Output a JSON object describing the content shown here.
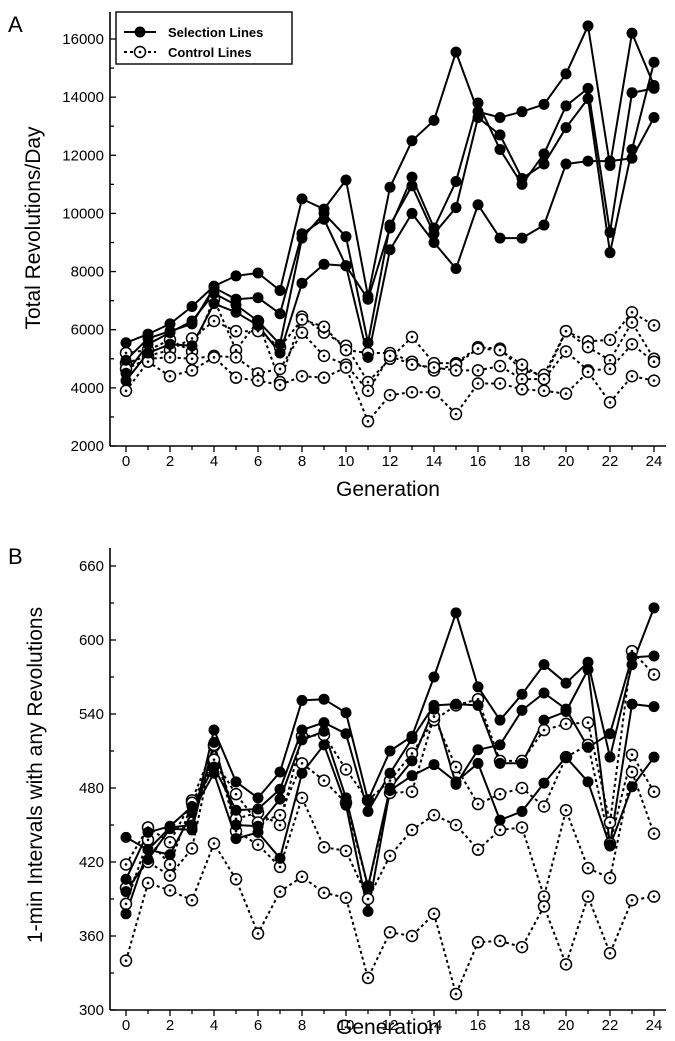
{
  "chart_data": [
    {
      "panel": "A",
      "type": "line",
      "ylabel": "Total Revolutions/Day",
      "xlabel": "Generation",
      "xlim": [
        0,
        24
      ],
      "ylim": [
        2000,
        17000
      ],
      "xticks": [
        "0",
        "2",
        "4",
        "6",
        "8",
        "10",
        "12",
        "14",
        "16",
        "18",
        "20",
        "22",
        "24"
      ],
      "yticks": [
        "2000",
        "4000",
        "6000",
        "8000",
        "10000",
        "12000",
        "14000",
        "16000"
      ],
      "legend": {
        "position": "top-left",
        "entries": [
          {
            "label": "Selection Lines",
            "marker": "filled-circle",
            "line": "solid"
          },
          {
            "label": "Control Lines",
            "marker": "open-circle",
            "line": "dotted"
          }
        ]
      },
      "x": [
        0,
        1,
        2,
        3,
        4,
        5,
        6,
        7,
        8,
        9,
        10,
        11,
        12,
        13,
        14,
        15,
        16,
        17,
        18,
        19,
        20,
        21,
        22,
        23,
        24
      ],
      "series": [
        {
          "group": "selection",
          "values": [
            5550,
            5850,
            6200,
            6800,
            7500,
            7850,
            7950,
            7350,
            10500,
            10150,
            11150,
            7150,
            10900,
            12500,
            13200,
            15550,
            13500,
            13300,
            13500,
            13750,
            14800,
            16450,
            11650,
            16200,
            14400
          ]
        },
        {
          "group": "selection",
          "values": [
            4950,
            5700,
            5950,
            6200,
            7450,
            7050,
            7100,
            6550,
            9300,
            9800,
            8200,
            7050,
            9500,
            11250,
            9500,
            11100,
            13800,
            12200,
            11000,
            12050,
            13700,
            14300,
            9350,
            14150,
            14300
          ]
        },
        {
          "group": "selection",
          "values": [
            4500,
            5500,
            5900,
            6300,
            7250,
            6850,
            6300,
            5500,
            9150,
            10000,
            9200,
            5550,
            9600,
            10950,
            9300,
            10200,
            13300,
            12700,
            11200,
            11700,
            12950,
            13950,
            8650,
            12200,
            15200
          ]
        },
        {
          "group": "selection",
          "values": [
            4250,
            5200,
            5500,
            5450,
            6900,
            6600,
            6150,
            5200,
            7600,
            8250,
            8200,
            5050,
            8750,
            10000,
            9000,
            8100,
            10300,
            9150,
            9150,
            9600,
            11700,
            11800,
            11800,
            11900,
            13300
          ]
        },
        {
          "group": "control",
          "values": [
            5200,
            5300,
            5650,
            5250,
            7050,
            5300,
            6300,
            4200,
            6450,
            5900,
            5450,
            4200,
            5000,
            5750,
            4850,
            4850,
            5400,
            5350,
            4600,
            4450,
            5950,
            5600,
            5650,
            6600,
            6150
          ]
        },
        {
          "group": "control",
          "values": [
            4850,
            5100,
            5300,
            5700,
            6300,
            5950,
            5950,
            5400,
            6350,
            6100,
            5300,
            5200,
            5200,
            4900,
            4600,
            4800,
            5350,
            5300,
            4800,
            4300,
            5950,
            5400,
            4950,
            6250,
            5000
          ]
        },
        {
          "group": "control",
          "values": [
            4650,
            5000,
            5050,
            5000,
            5100,
            5050,
            4500,
            4650,
            5900,
            5100,
            4800,
            3900,
            5100,
            4800,
            4700,
            4600,
            4600,
            4750,
            4300,
            4300,
            5250,
            4600,
            4650,
            5500,
            4900
          ]
        },
        {
          "group": "control",
          "values": [
            3900,
            4900,
            4400,
            4600,
            5050,
            4350,
            4250,
            4100,
            4400,
            4350,
            4700,
            2850,
            3750,
            3850,
            3850,
            3100,
            4150,
            4150,
            3950,
            3900,
            3800,
            4550,
            3500,
            4400,
            4250
          ]
        }
      ]
    },
    {
      "panel": "B",
      "type": "line",
      "ylabel": "1-min Intervals with any Revolutions",
      "xlabel": "Generation",
      "xlim": [
        0,
        24
      ],
      "ylim": [
        300,
        660
      ],
      "xticks": [
        "0",
        "2",
        "4",
        "6",
        "8",
        "10",
        "12",
        "14",
        "16",
        "18",
        "20",
        "22",
        "24"
      ],
      "yticks": [
        "300",
        "360",
        "420",
        "480",
        "540",
        "600",
        "660"
      ],
      "x": [
        0,
        1,
        2,
        3,
        4,
        5,
        6,
        7,
        8,
        9,
        10,
        11,
        12,
        13,
        14,
        15,
        16,
        17,
        18,
        19,
        20,
        21,
        22,
        23,
        24
      ],
      "series": [
        {
          "group": "selection",
          "values": [
            440,
            430,
            448,
            450,
            527,
            485,
            472,
            493,
            551,
            552,
            541,
            470,
            510,
            522,
            570,
            622,
            562,
            535,
            556,
            580,
            565,
            582,
            505,
            580,
            626
          ]
        },
        {
          "group": "selection",
          "values": [
            406,
            444,
            449,
            465,
            497,
            462,
            463,
            479,
            527,
            533,
            524,
            461,
            492,
            520,
            547,
            548,
            547,
            500,
            500,
            535,
            542,
            576,
            434,
            548,
            546
          ]
        },
        {
          "group": "selection",
          "values": [
            396,
            422,
            447,
            446,
            517,
            450,
            449,
            471,
            519,
            526,
            472,
            400,
            480,
            502,
            544,
            483,
            511,
            515,
            543,
            557,
            544,
            513,
            524,
            586,
            587
          ]
        },
        {
          "group": "selection",
          "values": [
            378,
            430,
            426,
            460,
            492,
            439,
            444,
            423,
            492,
            515,
            466,
            380,
            478,
            490,
            499,
            485,
            500,
            454,
            461,
            484,
            505,
            485,
            433,
            481,
            505
          ]
        },
        {
          "group": "control",
          "values": [
            418,
            448,
            436,
            470,
            514,
            455,
            460,
            450,
            522,
            523,
            495,
            470,
            486,
            508,
            535,
            547,
            552,
            502,
            502,
            527,
            532,
            533,
            452,
            591,
            572
          ]
        },
        {
          "group": "control",
          "values": [
            386,
            438,
            418,
            468,
            503,
            475,
            452,
            458,
            500,
            486,
            468,
            400,
            476,
            477,
            538,
            497,
            467,
            475,
            480,
            465,
            505,
            515,
            435,
            507,
            477
          ]
        },
        {
          "group": "control",
          "values": [
            399,
            420,
            409,
            431,
            515,
            445,
            434,
            416,
            472,
            432,
            429,
            390,
            425,
            446,
            458,
            450,
            430,
            446,
            448,
            392,
            462,
            415,
            407,
            493,
            443
          ]
        },
        {
          "group": "control",
          "values": [
            340,
            403,
            397,
            389,
            435,
            406,
            362,
            396,
            408,
            395,
            391,
            326,
            363,
            360,
            378,
            313,
            355,
            356,
            351,
            384,
            337,
            392,
            346,
            389,
            392
          ]
        }
      ]
    }
  ],
  "panels": [
    {
      "letter": "A",
      "ylabel": "Total Revolutions/Day",
      "xlabel": "Generation"
    },
    {
      "letter": "B",
      "ylabel": "1-min Intervals with any Revolutions",
      "xlabel": "Generation"
    }
  ]
}
